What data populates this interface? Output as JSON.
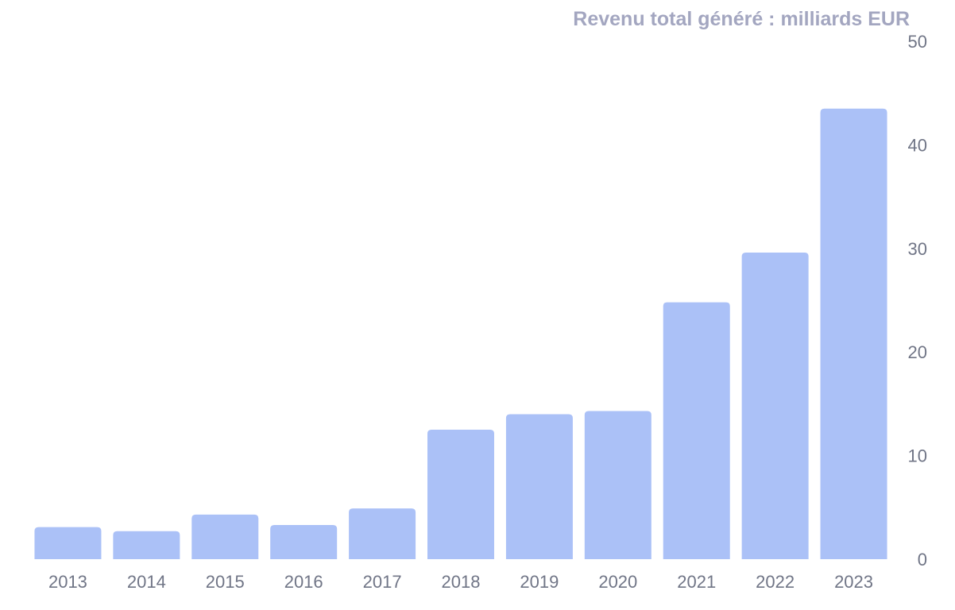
{
  "chart_data": {
    "type": "bar",
    "title": "Revenu total généré : milliards EUR",
    "xlabel": "",
    "ylabel": "",
    "categories": [
      "2013",
      "2014",
      "2015",
      "2016",
      "2017",
      "2018",
      "2019",
      "2020",
      "2021",
      "2022",
      "2023"
    ],
    "values": [
      3.1,
      2.7,
      4.3,
      3.3,
      4.9,
      12.5,
      14.0,
      14.3,
      24.8,
      29.6,
      43.5
    ],
    "ylim": [
      0,
      50
    ],
    "yticks": [
      0,
      10,
      20,
      30,
      40,
      50
    ],
    "y_axis_position": "right",
    "grid": false,
    "bar_color": "#abc1f7"
  }
}
